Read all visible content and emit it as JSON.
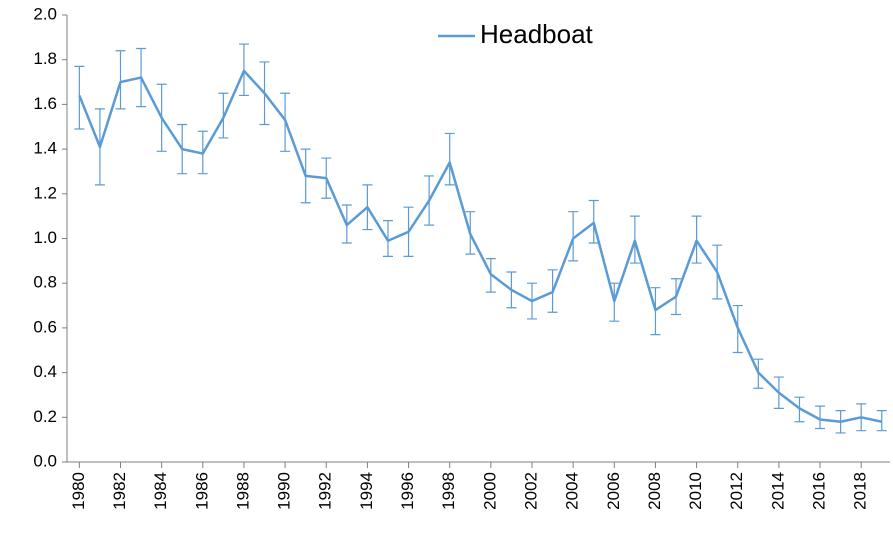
{
  "chart_data": {
    "type": "line",
    "x": [
      1980,
      1981,
      1982,
      1983,
      1984,
      1985,
      1986,
      1987,
      1988,
      1989,
      1990,
      1991,
      1992,
      1993,
      1994,
      1995,
      1996,
      1997,
      1998,
      1999,
      2000,
      2001,
      2002,
      2003,
      2004,
      2005,
      2006,
      2007,
      2008,
      2009,
      2010,
      2011,
      2012,
      2013,
      2014,
      2015,
      2016,
      2017,
      2018,
      2019
    ],
    "series": [
      {
        "name": "Headboat",
        "color": "#5b9bd5",
        "values": [
          1.64,
          1.41,
          1.7,
          1.72,
          1.54,
          1.4,
          1.38,
          1.54,
          1.75,
          1.65,
          1.53,
          1.28,
          1.27,
          1.06,
          1.14,
          0.99,
          1.03,
          1.17,
          1.34,
          1.02,
          0.84,
          0.77,
          0.72,
          0.76,
          1.0,
          1.07,
          0.72,
          0.99,
          0.68,
          0.74,
          0.99,
          0.85,
          0.6,
          0.4,
          0.31,
          0.24,
          0.19,
          0.18,
          0.2,
          0.18
        ],
        "upper": [
          1.77,
          1.58,
          1.84,
          1.85,
          1.69,
          1.51,
          1.48,
          1.65,
          1.87,
          1.79,
          1.65,
          1.4,
          1.36,
          1.15,
          1.24,
          1.08,
          1.14,
          1.28,
          1.47,
          1.12,
          0.91,
          0.85,
          0.8,
          0.86,
          1.12,
          1.17,
          0.8,
          1.1,
          0.78,
          0.82,
          1.1,
          0.97,
          0.7,
          0.46,
          0.38,
          0.29,
          0.25,
          0.23,
          0.26,
          0.23
        ],
        "lower": [
          1.49,
          1.24,
          1.58,
          1.59,
          1.39,
          1.29,
          1.29,
          1.45,
          1.64,
          1.51,
          1.39,
          1.16,
          1.18,
          0.98,
          1.04,
          0.92,
          0.92,
          1.06,
          1.24,
          0.93,
          0.76,
          0.69,
          0.64,
          0.67,
          0.9,
          0.98,
          0.63,
          0.89,
          0.57,
          0.66,
          0.89,
          0.73,
          0.49,
          0.33,
          0.24,
          0.18,
          0.15,
          0.13,
          0.14,
          0.14
        ]
      }
    ],
    "xlim": [
      1979.4,
      2019.4
    ],
    "xticks": [
      1980,
      1982,
      1984,
      1986,
      1988,
      1990,
      1992,
      1994,
      1996,
      1998,
      2000,
      2002,
      2004,
      2006,
      2008,
      2010,
      2012,
      2014,
      2016,
      2018
    ],
    "ylim": [
      0,
      2
    ],
    "yticks": [
      {
        "value": 0,
        "label": "0.0"
      },
      {
        "value": 0.2,
        "label": "0.2"
      },
      {
        "value": 0.4,
        "label": "0.4"
      },
      {
        "value": 0.6,
        "label": "0.6"
      },
      {
        "value": 0.8,
        "label": "0.8"
      },
      {
        "value": 1,
        "label": "1.0"
      },
      {
        "value": 1.2,
        "label": "1.2"
      },
      {
        "value": 1.4,
        "label": "1.4"
      },
      {
        "value": 1.6,
        "label": "1.6"
      },
      {
        "value": 1.8,
        "label": "1.8"
      },
      {
        "value": 2,
        "label": "2.0"
      }
    ],
    "grid": false,
    "legend": "top"
  }
}
